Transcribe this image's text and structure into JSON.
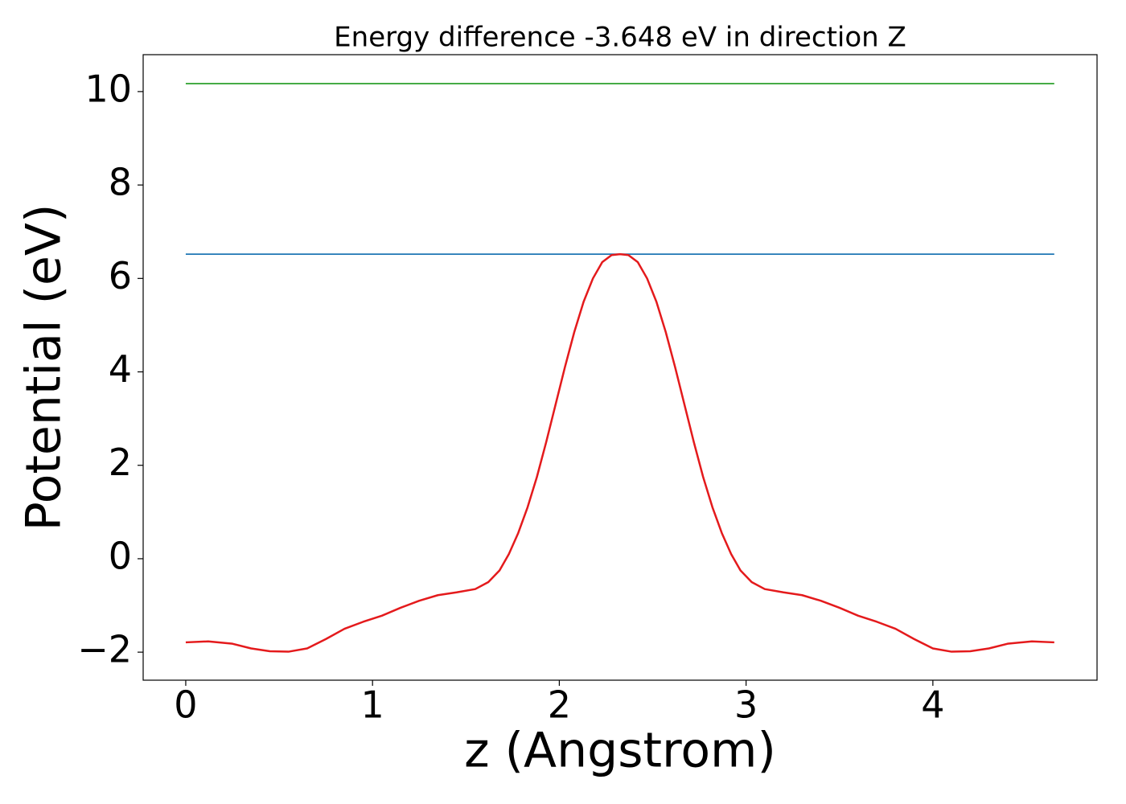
{
  "chart_data": {
    "type": "line",
    "title": "Energy difference -3.648 eV in direction Z",
    "xlabel": "z (Angstrom)",
    "ylabel": "Potential (eV)",
    "xlim": [
      -0.228,
      4.879
    ],
    "ylim": [
      -2.6,
      10.79
    ],
    "xticks": [
      0,
      1,
      2,
      3,
      4
    ],
    "yticks": [
      {
        "value": -2,
        "label": "−2"
      },
      0,
      2,
      4,
      6,
      8,
      10
    ],
    "grid": false,
    "series": [
      {
        "color": "#1f77b4",
        "x": [
          0,
          4.65
        ],
        "values": [
          6.52,
          6.52
        ]
      },
      {
        "color": "#2ca02c",
        "x": [
          0,
          4.65
        ],
        "values": [
          10.17,
          10.17
        ]
      },
      {
        "color": "#e41a1c",
        "x": [
          0,
          0.12,
          0.25,
          0.35,
          0.45,
          0.55,
          0.65,
          0.75,
          0.85,
          0.95,
          1.05,
          1.15,
          1.25,
          1.35,
          1.45,
          1.55,
          1.62,
          1.68,
          1.73,
          1.78,
          1.83,
          1.88,
          1.93,
          1.98,
          2.03,
          2.08,
          2.13,
          2.18,
          2.23,
          2.28,
          2.325,
          2.37,
          2.42,
          2.47,
          2.52,
          2.57,
          2.62,
          2.67,
          2.72,
          2.77,
          2.82,
          2.87,
          2.92,
          2.97,
          3.03,
          3.1,
          3.2,
          3.3,
          3.4,
          3.5,
          3.6,
          3.7,
          3.8,
          3.9,
          4.0,
          4.1,
          4.2,
          4.3,
          4.4,
          4.53,
          4.65
        ],
        "values": [
          -1.79,
          -1.77,
          -1.82,
          -1.92,
          -1.98,
          -1.99,
          -1.92,
          -1.72,
          -1.5,
          -1.35,
          -1.22,
          -1.05,
          -0.9,
          -0.78,
          -0.72,
          -0.65,
          -0.5,
          -0.25,
          0.1,
          0.55,
          1.1,
          1.75,
          2.5,
          3.3,
          4.1,
          4.85,
          5.5,
          6.0,
          6.35,
          6.5,
          6.52,
          6.5,
          6.35,
          6.0,
          5.5,
          4.85,
          4.1,
          3.3,
          2.5,
          1.75,
          1.1,
          0.55,
          0.1,
          -0.25,
          -0.5,
          -0.65,
          -0.72,
          -0.78,
          -0.9,
          -1.05,
          -1.22,
          -1.35,
          -1.5,
          -1.72,
          -1.92,
          -1.99,
          -1.98,
          -1.92,
          -1.82,
          -1.77,
          -1.79
        ]
      }
    ]
  }
}
